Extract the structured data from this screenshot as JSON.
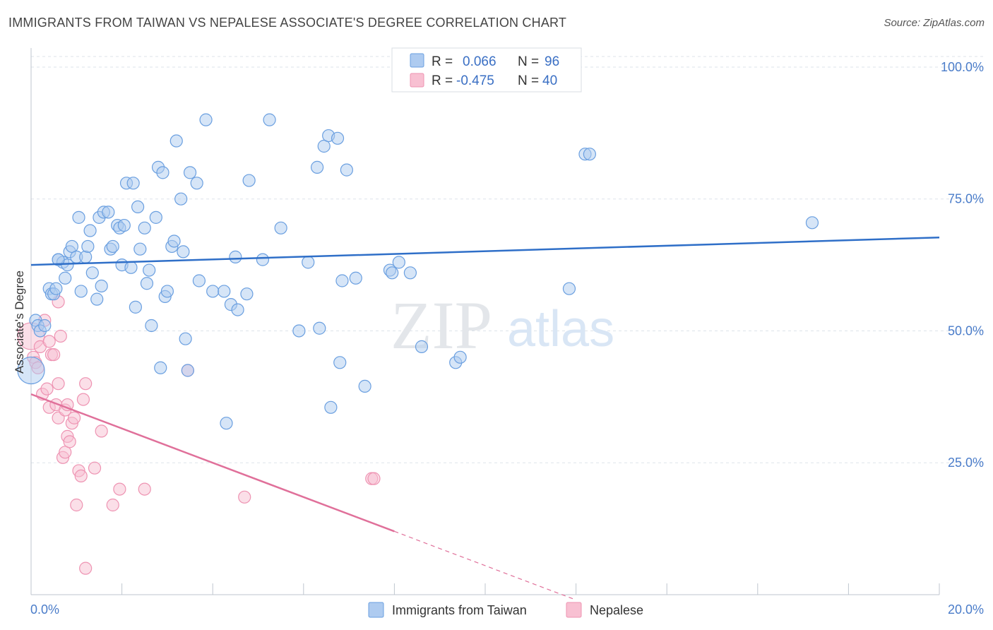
{
  "header": {
    "title": "IMMIGRANTS FROM TAIWAN VS NEPALESE ASSOCIATE'S DEGREE CORRELATION CHART",
    "source": "Source: ZipAtlas.com"
  },
  "watermark": {
    "zip": "ZIP",
    "atlas": "atlas"
  },
  "colors": {
    "taiwan_fill": "#aecbf0",
    "taiwan_stroke": "#6a9fe0",
    "taiwan_line": "#2f6fc8",
    "nepal_fill": "#f8c0d2",
    "nepal_stroke": "#ee93b2",
    "nepal_line": "#e0709a"
  },
  "legend": {
    "r_label": "R =",
    "n_label": "N =",
    "series": [
      {
        "r": "0.066",
        "n": "96"
      },
      {
        "r": "-0.475",
        "n": "40"
      }
    ]
  },
  "bottom_legend": [
    "Immigrants from Taiwan",
    "Nepalese"
  ],
  "chart_data": {
    "type": "scatter",
    "title": "IMMIGRANTS FROM TAIWAN VS NEPALESE ASSOCIATE'S DEGREE CORRELATION CHART",
    "xlabel": "",
    "ylabel": "Associate's Degree",
    "xlim": [
      0,
      20
    ],
    "ylim": [
      0,
      102
    ],
    "x_tick_labels": [
      "0.0%",
      "20.0%"
    ],
    "y_ticks": [
      {
        "value": 25,
        "label": "25.0%"
      },
      {
        "value": 50,
        "label": "50.0%"
      },
      {
        "value": 75,
        "label": "75.0%"
      },
      {
        "value": 100,
        "label": "100.0%"
      }
    ],
    "grid": true,
    "legend_position": "top-center",
    "series": [
      {
        "name": "Immigrants from Taiwan",
        "r": 0.066,
        "n": 96,
        "trend": {
          "x": [
            0,
            20
          ],
          "y": [
            62.5,
            67.7
          ]
        },
        "points": [
          [
            0.0,
            42.5
          ],
          [
            0.1,
            52
          ],
          [
            0.15,
            51
          ],
          [
            0.2,
            50
          ],
          [
            0.3,
            51
          ],
          [
            0.4,
            58
          ],
          [
            0.45,
            57
          ],
          [
            0.5,
            57
          ],
          [
            0.55,
            58
          ],
          [
            0.6,
            63.5
          ],
          [
            0.7,
            63
          ],
          [
            0.75,
            60
          ],
          [
            0.8,
            62.5
          ],
          [
            0.85,
            65
          ],
          [
            0.9,
            66
          ],
          [
            1.0,
            64
          ],
          [
            1.05,
            71.5
          ],
          [
            1.1,
            57.5
          ],
          [
            1.2,
            64
          ],
          [
            1.25,
            66
          ],
          [
            1.3,
            69
          ],
          [
            1.35,
            61
          ],
          [
            1.45,
            56
          ],
          [
            1.5,
            71.5
          ],
          [
            1.55,
            58.5
          ],
          [
            1.6,
            72.5
          ],
          [
            1.7,
            72.5
          ],
          [
            1.75,
            65.5
          ],
          [
            1.8,
            66
          ],
          [
            1.9,
            70
          ],
          [
            1.95,
            69.5
          ],
          [
            2.0,
            62.5
          ],
          [
            2.05,
            70
          ],
          [
            2.1,
            78
          ],
          [
            2.2,
            62
          ],
          [
            2.25,
            78
          ],
          [
            2.3,
            54.5
          ],
          [
            2.35,
            73.5
          ],
          [
            2.4,
            65.5
          ],
          [
            2.5,
            69.5
          ],
          [
            2.55,
            59
          ],
          [
            2.6,
            61.5
          ],
          [
            2.65,
            51
          ],
          [
            2.75,
            71.5
          ],
          [
            2.8,
            81
          ],
          [
            2.85,
            43
          ],
          [
            2.9,
            80
          ],
          [
            2.95,
            56.5
          ],
          [
            3.0,
            57.5
          ],
          [
            3.1,
            66
          ],
          [
            3.15,
            67
          ],
          [
            3.2,
            86
          ],
          [
            3.3,
            75
          ],
          [
            3.35,
            65
          ],
          [
            3.4,
            48.5
          ],
          [
            3.45,
            42.5
          ],
          [
            3.5,
            80
          ],
          [
            3.65,
            78
          ],
          [
            3.7,
            59.5
          ],
          [
            3.85,
            90
          ],
          [
            4.0,
            57.5
          ],
          [
            4.25,
            57.5
          ],
          [
            4.3,
            32.5
          ],
          [
            4.4,
            55
          ],
          [
            4.5,
            64
          ],
          [
            4.55,
            54
          ],
          [
            4.75,
            57
          ],
          [
            4.8,
            78.5
          ],
          [
            5.1,
            63.5
          ],
          [
            5.25,
            90
          ],
          [
            5.5,
            69.5
          ],
          [
            5.9,
            50
          ],
          [
            6.1,
            63
          ],
          [
            6.3,
            81
          ],
          [
            6.35,
            50.5
          ],
          [
            6.45,
            85
          ],
          [
            6.55,
            87
          ],
          [
            6.6,
            35.5
          ],
          [
            6.75,
            86.5
          ],
          [
            6.8,
            44
          ],
          [
            6.85,
            59.5
          ],
          [
            6.95,
            80.5
          ],
          [
            7.15,
            60
          ],
          [
            7.35,
            39.5
          ],
          [
            7.9,
            61.5
          ],
          [
            7.95,
            61
          ],
          [
            8.1,
            63
          ],
          [
            8.35,
            61
          ],
          [
            8.6,
            47
          ],
          [
            9.35,
            44
          ],
          [
            9.45,
            45
          ],
          [
            11.85,
            58
          ],
          [
            12.2,
            83.5
          ],
          [
            12.3,
            83.5
          ],
          [
            17.2,
            70.5
          ],
          [
            0.6,
            63.5
          ]
        ]
      },
      {
        "name": "Nepalese",
        "r": -0.475,
        "n": 40,
        "trend": {
          "x": [
            0,
            8
          ],
          "y": [
            38,
            12
          ],
          "dashed_to": {
            "x": 12,
            "y": -1
          }
        },
        "points": [
          [
            0.0,
            49
          ],
          [
            0.05,
            45
          ],
          [
            0.1,
            44
          ],
          [
            0.15,
            43
          ],
          [
            0.2,
            47
          ],
          [
            0.25,
            38
          ],
          [
            0.3,
            52
          ],
          [
            0.35,
            39
          ],
          [
            0.4,
            48
          ],
          [
            0.4,
            35.5
          ],
          [
            0.45,
            45.5
          ],
          [
            0.5,
            45.5
          ],
          [
            0.55,
            36
          ],
          [
            0.6,
            40
          ],
          [
            0.6,
            55.5
          ],
          [
            0.6,
            33.5
          ],
          [
            0.65,
            49
          ],
          [
            0.7,
            26
          ],
          [
            0.75,
            27
          ],
          [
            0.75,
            35
          ],
          [
            0.8,
            30
          ],
          [
            0.8,
            36
          ],
          [
            0.85,
            29
          ],
          [
            0.9,
            32.5
          ],
          [
            0.95,
            33.5
          ],
          [
            1.0,
            17
          ],
          [
            1.05,
            23.5
          ],
          [
            1.1,
            22.5
          ],
          [
            1.15,
            37
          ],
          [
            1.2,
            40
          ],
          [
            1.2,
            5
          ],
          [
            1.4,
            24
          ],
          [
            1.55,
            31
          ],
          [
            1.8,
            17
          ],
          [
            1.95,
            20
          ],
          [
            2.5,
            20
          ],
          [
            3.45,
            42.5
          ],
          [
            4.7,
            18.5
          ],
          [
            7.5,
            22
          ],
          [
            7.55,
            22
          ]
        ]
      }
    ]
  }
}
